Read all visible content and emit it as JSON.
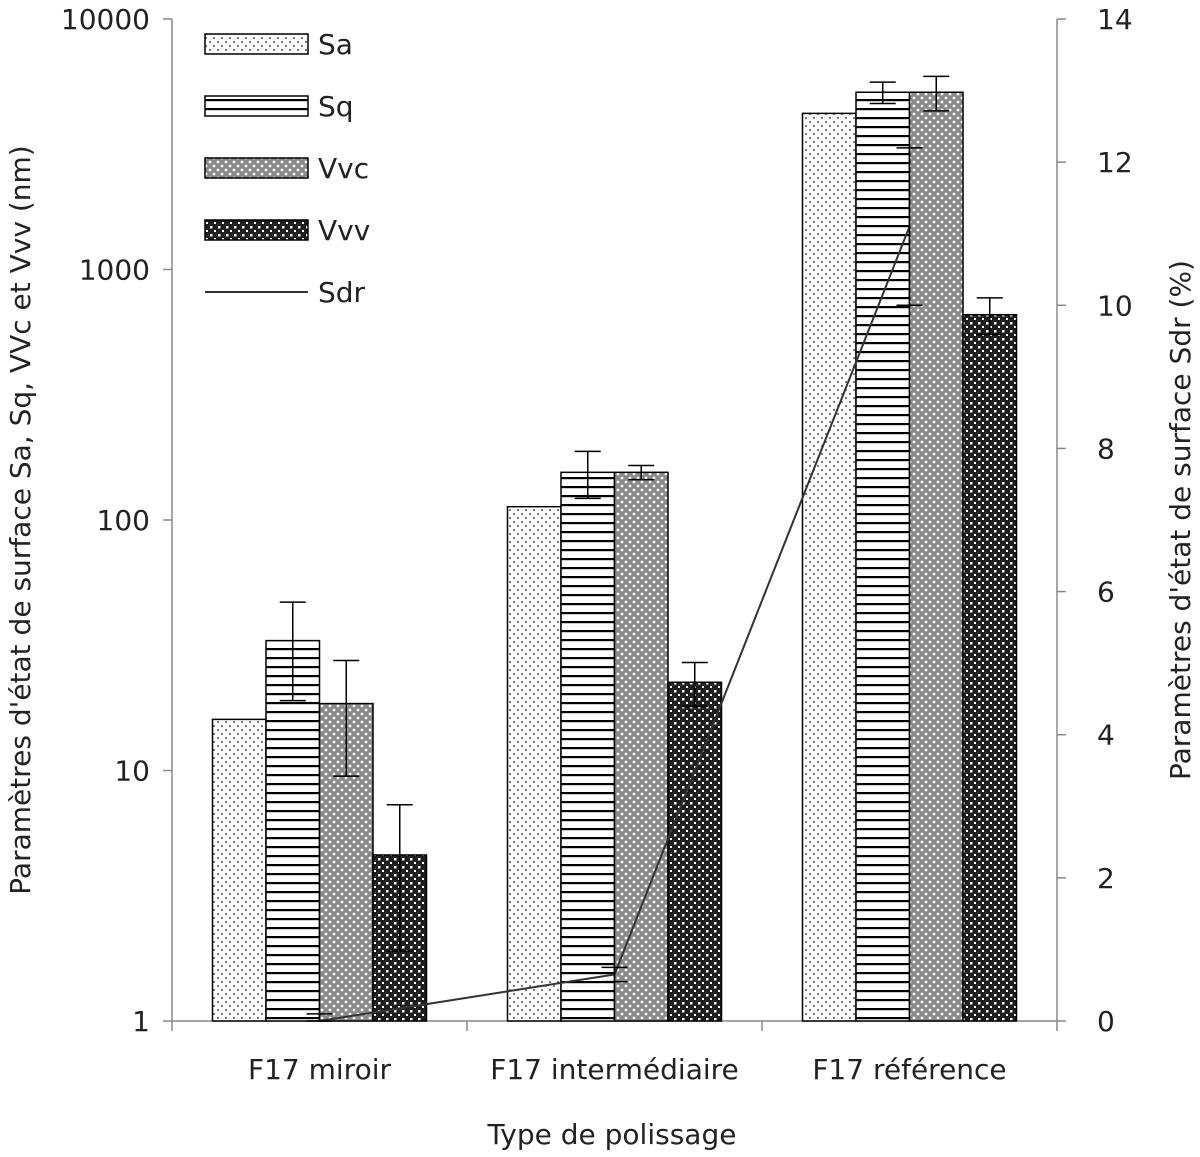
{
  "chart_data": {
    "type": "bar",
    "xlabel": "Type de polissage",
    "ylabel": "Paramètres d'état de surface Sa, Sq, VVc et Vvv (nm)",
    "y2label": "Paramètres d'état de surface Sdr (%)",
    "yscale": "log",
    "ylim": [
      1,
      10000
    ],
    "y_ticks": [
      "1",
      "10",
      "100",
      "1000",
      "10000"
    ],
    "y2lim": [
      0,
      14
    ],
    "y2_ticks": [
      "0",
      "2",
      "4",
      "6",
      "8",
      "10",
      "12",
      "14"
    ],
    "categories": [
      "F17 miroir",
      "F17 intermédiaire",
      "F17 référence"
    ],
    "series": [
      {
        "name": "Sa",
        "pattern": "dots",
        "values": [
          16,
          113,
          4200
        ],
        "err": [
          0,
          0,
          0
        ]
      },
      {
        "name": "Sq",
        "pattern": "hlines",
        "values": [
          33,
          155,
          5100
        ],
        "err": [
          14,
          33,
          500
        ]
      },
      {
        "name": "Vvc",
        "pattern": "grid-light",
        "values": [
          18.5,
          155,
          5100
        ],
        "err": [
          9,
          10,
          800
        ]
      },
      {
        "name": "Vvv",
        "pattern": "grid-dark",
        "values": [
          4.6,
          22.5,
          660
        ],
        "err": [
          2.7,
          4.5,
          110
        ]
      }
    ],
    "line_series": {
      "name": "Sdr",
      "axis": "right",
      "values": [
        0.0,
        0.65,
        11.1
      ],
      "err": [
        0.1,
        0.1,
        1.1
      ]
    },
    "legend_position": "top-left",
    "grid": false,
    "colors": {
      "axis": "#888888",
      "text": "#222222",
      "bar_stroke": "#000000",
      "line": "#333333"
    }
  }
}
